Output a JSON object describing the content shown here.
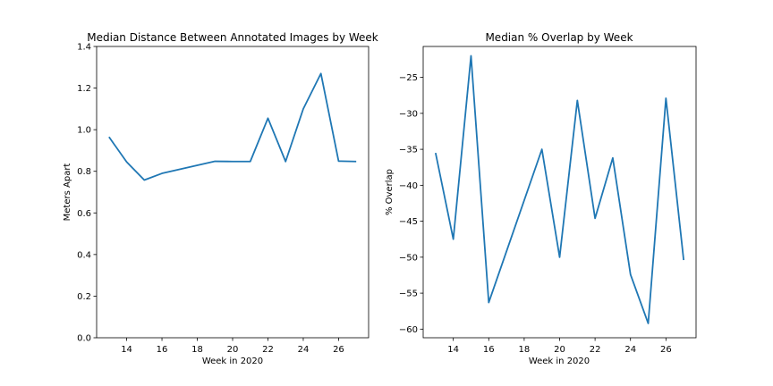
{
  "chart_data": [
    {
      "type": "line",
      "title": "Median Distance Between Annotated Images by Week",
      "xlabel": "Week in 2020",
      "ylabel": "Meters Apart",
      "xlim": [
        12.3,
        27.7
      ],
      "ylim": [
        0.0,
        1.4
      ],
      "xticks": [
        14,
        16,
        18,
        20,
        22,
        24,
        26
      ],
      "yticks": [
        0.0,
        0.2,
        0.4,
        0.6,
        0.8,
        1.0,
        1.2,
        1.4
      ],
      "tick_format": 1,
      "grid": false,
      "series": [
        {
          "color": "#1f77b4",
          "x": [
            13,
            14,
            15,
            16,
            19,
            20,
            21,
            22,
            23,
            24,
            25,
            26,
            27
          ],
          "y": [
            0.965,
            0.845,
            0.758,
            0.79,
            0.848,
            0.847,
            0.847,
            1.055,
            0.847,
            1.1,
            1.27,
            0.849,
            0.847
          ]
        }
      ]
    },
    {
      "type": "line",
      "title": "Median % Overlap by Week",
      "xlabel": "Week in 2020",
      "ylabel": "% Overlap",
      "xlim": [
        12.3,
        27.7
      ],
      "ylim": [
        -61.2,
        -20.7
      ],
      "xticks": [
        14,
        16,
        18,
        20,
        22,
        24,
        26
      ],
      "yticks": [
        -25,
        -30,
        -35,
        -40,
        -45,
        -50,
        -55,
        -60
      ],
      "tick_format": 0,
      "grid": false,
      "series": [
        {
          "color": "#1f77b4",
          "x": [
            13,
            14,
            15,
            16,
            19,
            20,
            21,
            22,
            23,
            24,
            25,
            26,
            27
          ],
          "y": [
            -35.5,
            -47.5,
            -22.0,
            -56.3,
            -35.0,
            -50.0,
            -28.2,
            -44.6,
            -36.2,
            -52.4,
            -59.2,
            -27.9,
            -50.4
          ]
        }
      ]
    }
  ]
}
